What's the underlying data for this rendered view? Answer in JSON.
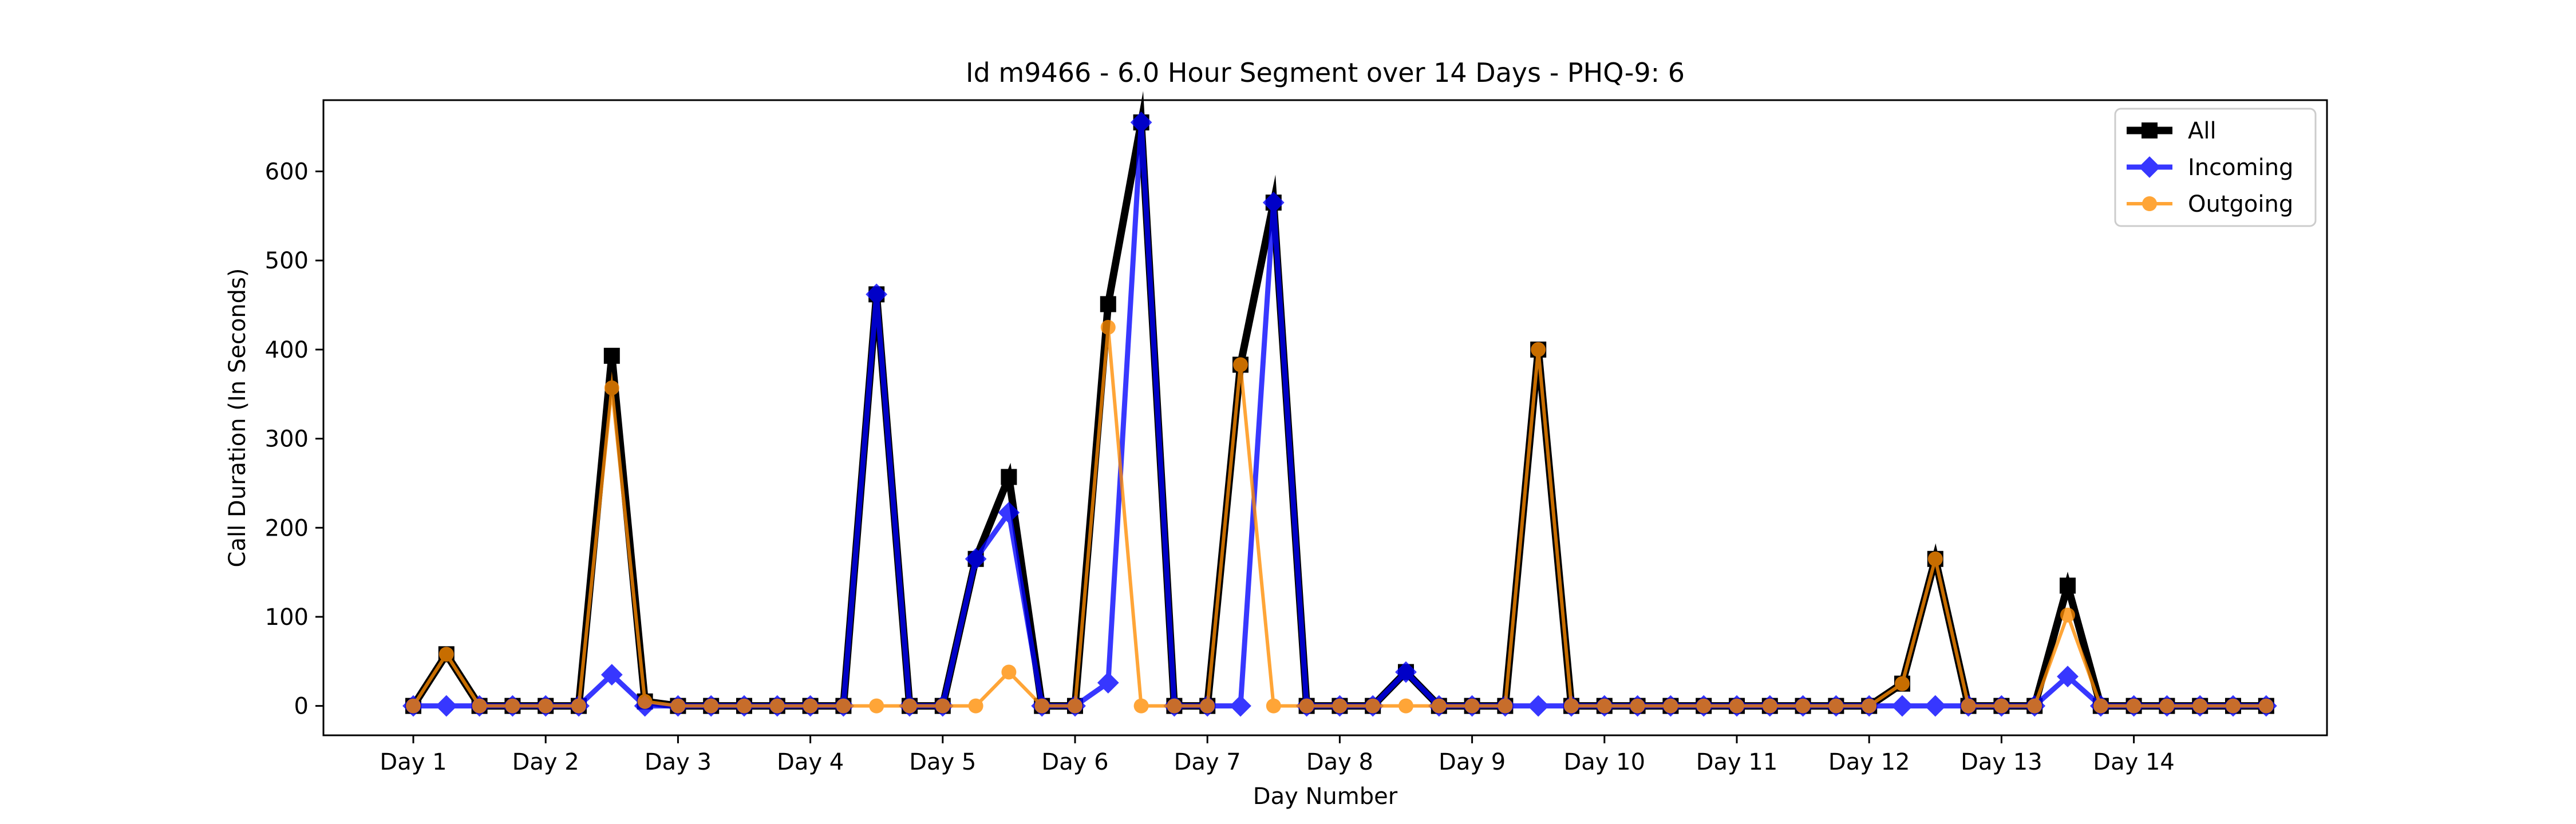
{
  "chart_data": {
    "type": "line",
    "title": "Id m9466 - 6.0 Hour Segment over 14 Days - PHQ-9: 6",
    "xlabel": "Day Number",
    "ylabel": "Call Duration (In Seconds)",
    "x_tick_labels": [
      "Day 1",
      "Day 2",
      "Day 3",
      "Day 4",
      "Day 5",
      "Day 6",
      "Day 7",
      "Day 8",
      "Day 9",
      "Day 10",
      "Day 11",
      "Day 12",
      "Day 13",
      "Day 14"
    ],
    "y_ticks": [
      0,
      100,
      200,
      300,
      400,
      500,
      600
    ],
    "ylim": [
      -33,
      680
    ],
    "x_segments_per_day": 4,
    "grid": false,
    "legend": "top-right",
    "series": [
      {
        "name": "All",
        "color": "#000000",
        "marker": "square",
        "values": [
          0,
          58,
          0,
          0,
          0,
          0,
          393,
          5,
          0,
          0,
          0,
          0,
          0,
          0,
          462,
          0,
          0,
          165,
          257,
          0,
          0,
          451,
          655,
          0,
          0,
          383,
          565,
          0,
          0,
          0,
          38,
          0,
          0,
          0,
          400,
          0,
          0,
          0,
          0,
          0,
          0,
          0,
          0,
          0,
          0,
          25,
          165,
          0,
          0,
          0,
          135,
          0,
          0,
          0,
          0,
          0,
          0
        ]
      },
      {
        "name": "Incoming",
        "color": "#0000ff",
        "marker": "diamond",
        "values": [
          0,
          0,
          0,
          0,
          0,
          0,
          35,
          0,
          0,
          0,
          0,
          0,
          0,
          0,
          462,
          0,
          0,
          165,
          217,
          0,
          0,
          26,
          655,
          0,
          0,
          0,
          565,
          0,
          0,
          0,
          38,
          0,
          0,
          0,
          0,
          0,
          0,
          0,
          0,
          0,
          0,
          0,
          0,
          0,
          0,
          0,
          0,
          0,
          0,
          0,
          33,
          0,
          0,
          0,
          0,
          0,
          0
        ]
      },
      {
        "name": "Outgoing",
        "color": "#ff8c00",
        "marker": "circle",
        "values": [
          0,
          58,
          0,
          0,
          0,
          0,
          357,
          5,
          0,
          0,
          0,
          0,
          0,
          0,
          0,
          0,
          0,
          0,
          38,
          0,
          0,
          425,
          0,
          0,
          0,
          383,
          0,
          0,
          0,
          0,
          0,
          0,
          0,
          0,
          400,
          0,
          0,
          0,
          0,
          0,
          0,
          0,
          0,
          0,
          0,
          25,
          165,
          0,
          0,
          0,
          102,
          0,
          0,
          0,
          0,
          0,
          0
        ]
      }
    ]
  }
}
